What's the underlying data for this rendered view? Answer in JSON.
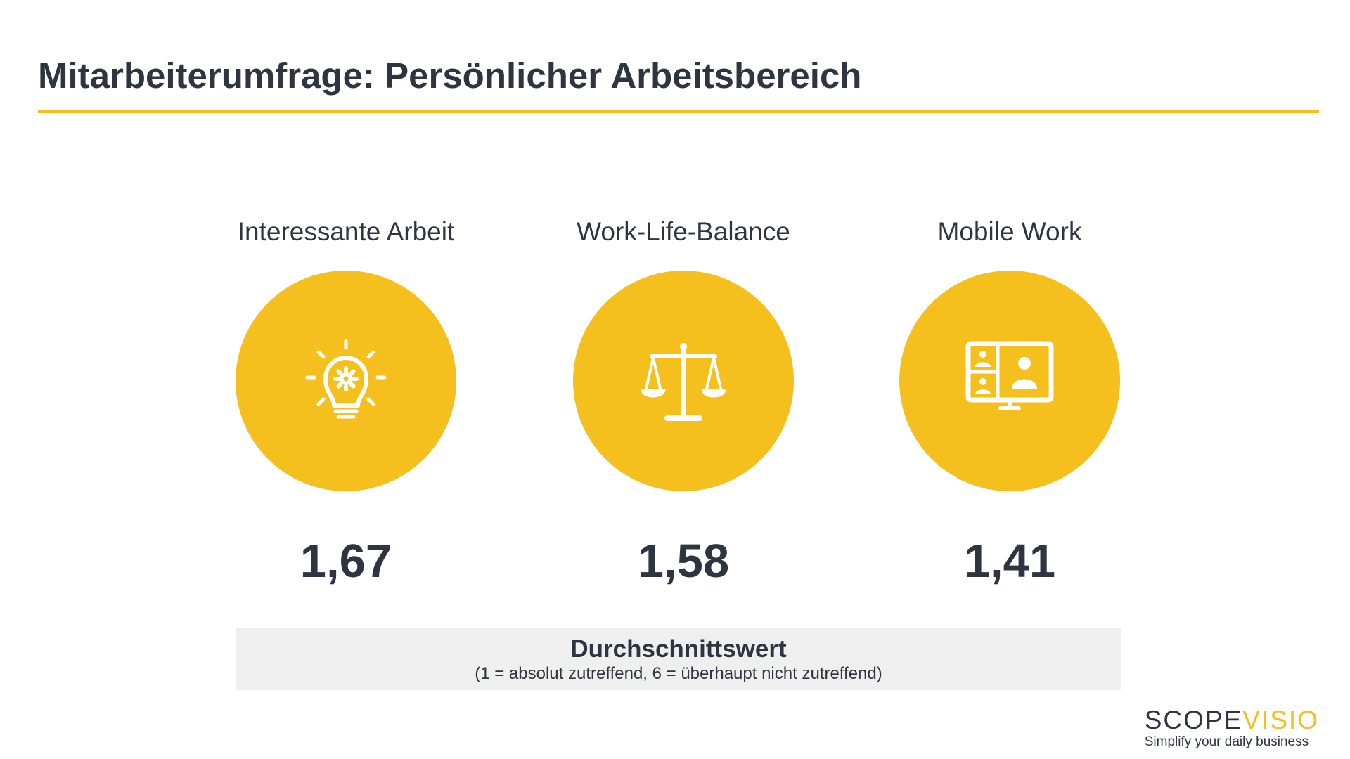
{
  "title": "Mitarbeiterumfrage: Persönlicher Arbeitsbereich",
  "colors": {
    "accent": "#f5bf1e",
    "text": "#2f3540",
    "legend_bg": "#efefef"
  },
  "metrics": [
    {
      "label": "Interessante Arbeit",
      "value": "1,67",
      "icon": "lightbulb-gear-icon"
    },
    {
      "label": "Work-Life-Balance",
      "value": "1,58",
      "icon": "balance-scale-icon"
    },
    {
      "label": "Mobile Work",
      "value": "1,41",
      "icon": "video-conference-monitor-icon"
    }
  ],
  "legend": {
    "title": "Durchschnittswert",
    "subtitle": "(1 = absolut zutreffend, 6 = überhaupt nicht zutreffend)"
  },
  "brand": {
    "name_part1": "SCOPE",
    "name_part2": "VISIO",
    "tagline": "Simplify your daily business"
  }
}
